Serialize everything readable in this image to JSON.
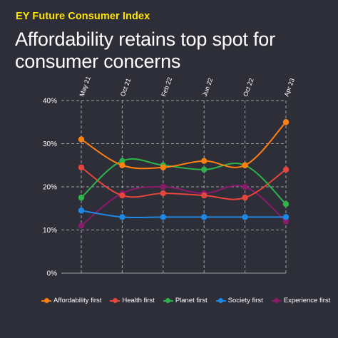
{
  "header": {
    "brand": "EY Future Consumer Index",
    "title": "Affordability retains top spot for consumer concerns"
  },
  "chart_data": {
    "type": "line",
    "categories": [
      "May 21",
      "Oct 21",
      "Feb 22",
      "Jun 22",
      "Oct 22",
      "Apr 23"
    ],
    "y_ticks": [
      "40%",
      "30%",
      "20%",
      "10%",
      "0%"
    ],
    "ylim": [
      0,
      40
    ],
    "grid": "dashed vertical lines at categories",
    "legend_position": "bottom",
    "series": [
      {
        "name": "Affordability first",
        "color": "#ff7f0e",
        "values": [
          31,
          25,
          24.5,
          26,
          25,
          35
        ]
      },
      {
        "name": "Health first",
        "color": "#e8453c",
        "values": [
          24.5,
          18,
          18.5,
          18,
          17.5,
          24
        ]
      },
      {
        "name": "Planet first",
        "color": "#2db34a",
        "values": [
          17.5,
          26,
          25,
          24,
          25,
          16
        ]
      },
      {
        "name": "Society first",
        "color": "#1e88e5",
        "values": [
          14.5,
          13,
          13,
          13,
          13,
          13
        ]
      },
      {
        "name": "Experience first",
        "color": "#8b1a6b",
        "values": [
          11,
          18.5,
          20,
          18.5,
          20,
          12
        ]
      }
    ]
  }
}
